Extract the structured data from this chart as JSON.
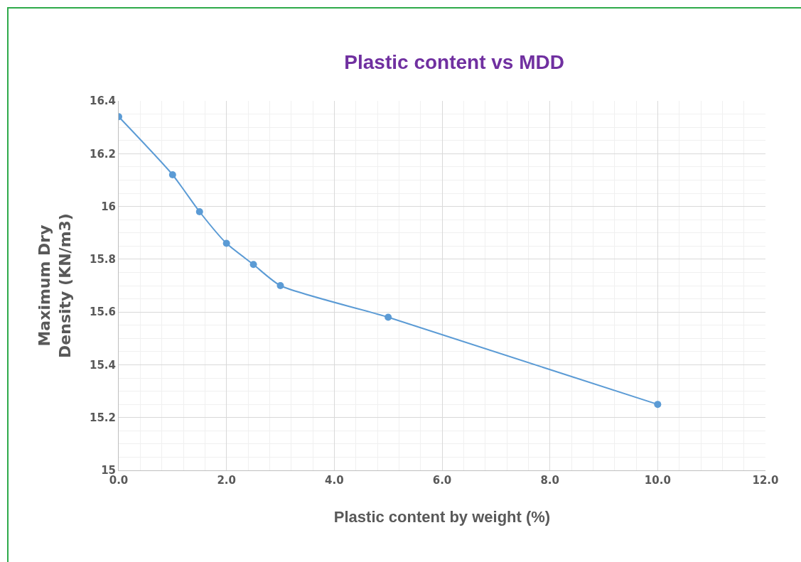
{
  "chart_data": {
    "type": "line",
    "title": "Plastic content vs MDD",
    "xlabel": "Plastic content by weight (%)",
    "ylabel": "Maximum Dry\nDensity (KN/m3)",
    "x": [
      0,
      1,
      1.5,
      2,
      2.5,
      3,
      5,
      10
    ],
    "series": [
      {
        "color": "#5b9bd5",
        "values": [
          16.34,
          16.12,
          15.98,
          15.86,
          15.78,
          15.7,
          15.58,
          15.25
        ]
      }
    ],
    "xlim": [
      0,
      12
    ],
    "xticks": [
      {
        "value": 0,
        "label": "0.0"
      },
      {
        "value": 2,
        "label": "2.0"
      },
      {
        "value": 4,
        "label": "4.0"
      },
      {
        "value": 6,
        "label": "6.0"
      },
      {
        "value": 8,
        "label": "8.0"
      },
      {
        "value": 10,
        "label": "10.0"
      },
      {
        "value": 12,
        "label": "12.0"
      }
    ],
    "ylim": [
      15,
      16.4
    ],
    "yticks": [
      15,
      15.2,
      15.4,
      15.6,
      15.8,
      16,
      16.2,
      16.4
    ],
    "grid": true,
    "legend": false,
    "marker": "circle",
    "line_style": "solid"
  }
}
